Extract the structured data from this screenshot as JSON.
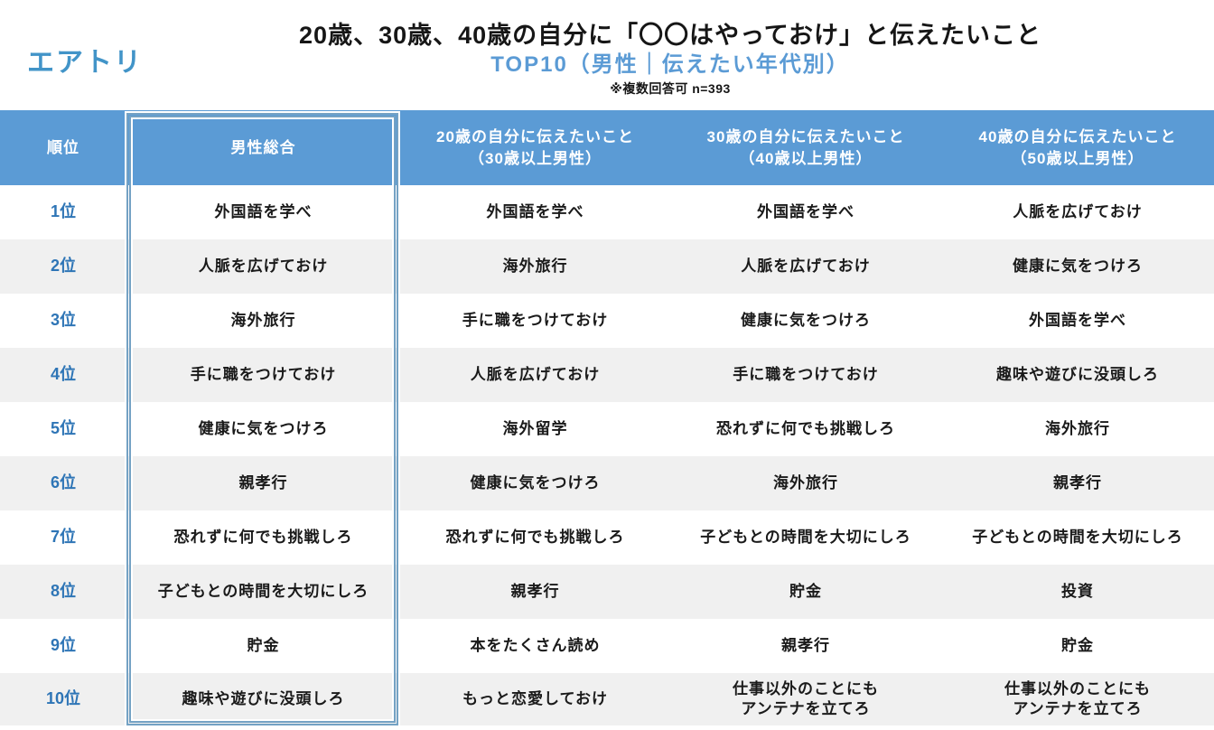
{
  "logo": {
    "text": "エアトリ",
    "color": "#4294c8"
  },
  "colors": {
    "header_bg": "#5b9bd5",
    "subtitle_text": "#5b9bd5",
    "rank_text": "#2e75b6",
    "row_alt_bg": "#f0f0f0",
    "highlight_border": "#74a2c4"
  },
  "chart_data": {
    "type": "table",
    "title": "20歳、30歳、40歳の自分に「〇〇はやっておけ」と伝えたいこと",
    "subtitle": "TOP10（男性｜伝えたい年代別）",
    "note": "※複数回答可 n=393",
    "highlighted_column": "男性総合",
    "columns": [
      "順位",
      "男性総合",
      "20歳の自分に伝えたいこと\n（30歳以上男性）",
      "30歳の自分に伝えたいこと\n（40歳以上男性）",
      "40歳の自分に伝えたいこと\n（50歳以上男性）"
    ],
    "rows": [
      [
        "1位",
        "外国語を学べ",
        "外国語を学べ",
        "外国語を学べ",
        "人脈を広げておけ"
      ],
      [
        "2位",
        "人脈を広げておけ",
        "海外旅行",
        "人脈を広げておけ",
        "健康に気をつけろ"
      ],
      [
        "3位",
        "海外旅行",
        "手に職をつけておけ",
        "健康に気をつけろ",
        "外国語を学べ"
      ],
      [
        "4位",
        "手に職をつけておけ",
        "人脈を広げておけ",
        "手に職をつけておけ",
        "趣味や遊びに没頭しろ"
      ],
      [
        "5位",
        "健康に気をつけろ",
        "海外留学",
        "恐れずに何でも挑戦しろ",
        "海外旅行"
      ],
      [
        "6位",
        "親孝行",
        "健康に気をつけろ",
        "海外旅行",
        "親孝行"
      ],
      [
        "7位",
        "恐れずに何でも挑戦しろ",
        "恐れずに何でも挑戦しろ",
        "子どもとの時間を大切にしろ",
        "子どもとの時間を大切にしろ"
      ],
      [
        "8位",
        "子どもとの時間を大切にしろ",
        "親孝行",
        "貯金",
        "投資"
      ],
      [
        "9位",
        "貯金",
        "本をたくさん読め",
        "親孝行",
        "貯金"
      ],
      [
        "10位",
        "趣味や遊びに没頭しろ",
        "もっと恋愛しておけ",
        "仕事以外のことにも\nアンテナを立てろ",
        "仕事以外のことにも\nアンテナを立てろ"
      ]
    ]
  }
}
